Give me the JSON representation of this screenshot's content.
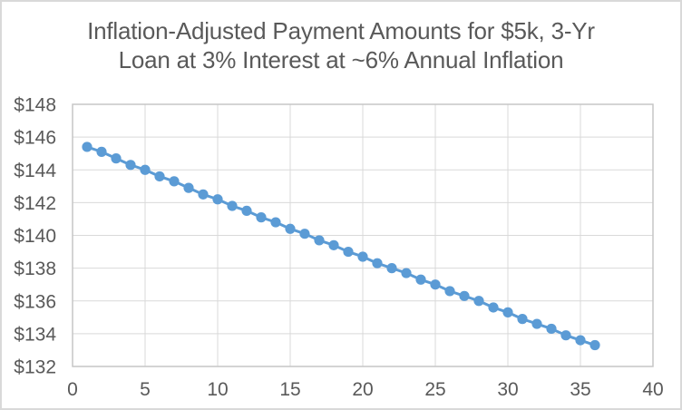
{
  "window": {
    "background": "#ffffff",
    "border_color": "#d9d9d9"
  },
  "chart": {
    "title_lines": [
      "Inflation-Adjusted Payment Amounts for $5k, 3-Yr",
      "Loan at 3% Interest at ~6% Annual Inflation"
    ],
    "colors": {
      "series": "#5b9bd5",
      "text": "#595959",
      "gridline": "#d9d9d9",
      "plot_border": "#c6c6c6"
    }
  },
  "chart_data": {
    "type": "line",
    "title": "Inflation-Adjusted Payment Amounts for $5k, 3-Yr Loan at 3% Interest at ~6% Annual Inflation",
    "xlabel": "",
    "ylabel": "",
    "xlim": [
      0,
      40
    ],
    "ylim": [
      132,
      148
    ],
    "grid": true,
    "legend": false,
    "marker": "circle",
    "x": [
      1,
      2,
      3,
      4,
      5,
      6,
      7,
      8,
      9,
      10,
      11,
      12,
      13,
      14,
      15,
      16,
      17,
      18,
      19,
      20,
      21,
      22,
      23,
      24,
      25,
      26,
      27,
      28,
      29,
      30,
      31,
      32,
      33,
      34,
      35,
      36
    ],
    "y": [
      145.4,
      145.1,
      144.7,
      144.3,
      144.0,
      143.6,
      143.3,
      142.9,
      142.5,
      142.2,
      141.8,
      141.5,
      141.1,
      140.8,
      140.4,
      140.1,
      139.7,
      139.4,
      139.0,
      138.7,
      138.3,
      138.0,
      137.7,
      137.3,
      137.0,
      136.6,
      136.3,
      136.0,
      135.6,
      135.3,
      134.9,
      134.6,
      134.3,
      133.9,
      133.6,
      133.3
    ],
    "x_ticks": [
      {
        "value": 0,
        "label": "0"
      },
      {
        "value": 5,
        "label": "5"
      },
      {
        "value": 10,
        "label": "10"
      },
      {
        "value": 15,
        "label": "15"
      },
      {
        "value": 20,
        "label": "20"
      },
      {
        "value": 25,
        "label": "25"
      },
      {
        "value": 30,
        "label": "30"
      },
      {
        "value": 35,
        "label": "35"
      },
      {
        "value": 40,
        "label": "40"
      }
    ],
    "y_ticks": [
      {
        "value": 148,
        "label": "$148"
      },
      {
        "value": 146,
        "label": "$146"
      },
      {
        "value": 144,
        "label": "$144"
      },
      {
        "value": 142,
        "label": "$142"
      },
      {
        "value": 140,
        "label": "$140"
      },
      {
        "value": 138,
        "label": "$138"
      },
      {
        "value": 136,
        "label": "$136"
      },
      {
        "value": 134,
        "label": "$134"
      },
      {
        "value": 132,
        "label": "$132"
      }
    ]
  }
}
